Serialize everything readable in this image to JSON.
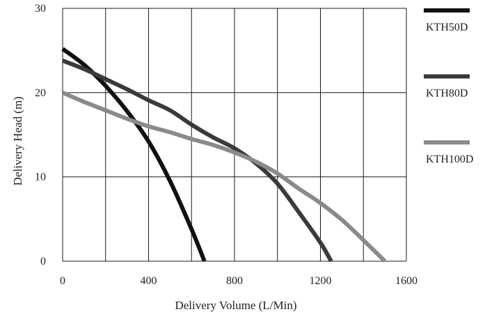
{
  "chart_data": {
    "type": "line",
    "title": "",
    "xlabel": "Delivery Volume (L/Min)",
    "ylabel": "Delivery Head (m)",
    "xlim": [
      0,
      1600
    ],
    "ylim": [
      0,
      30
    ],
    "x_ticks": [
      "0",
      "400",
      "800",
      "1200",
      "1600"
    ],
    "y_ticks": [
      "0",
      "10",
      "20",
      "30"
    ],
    "grid": true,
    "legend_position": "right",
    "series": [
      {
        "name": "KTH50D",
        "color": "#111111",
        "points": [
          [
            0,
            25.2
          ],
          [
            100,
            23.3
          ],
          [
            200,
            20.8
          ],
          [
            300,
            17.8
          ],
          [
            400,
            14.2
          ],
          [
            500,
            9.5
          ],
          [
            600,
            3.8
          ],
          [
            660,
            0
          ]
        ]
      },
      {
        "name": "KTH80D",
        "color": "#3a3a3a",
        "points": [
          [
            0,
            23.8
          ],
          [
            100,
            22.8
          ],
          [
            200,
            21.6
          ],
          [
            300,
            20.4
          ],
          [
            400,
            19.1
          ],
          [
            500,
            17.9
          ],
          [
            600,
            16.2
          ],
          [
            700,
            14.7
          ],
          [
            800,
            13.4
          ],
          [
            900,
            11.6
          ],
          [
            1000,
            9.2
          ],
          [
            1100,
            5.8
          ],
          [
            1200,
            2.2
          ],
          [
            1250,
            0
          ]
        ]
      },
      {
        "name": "KTH100D",
        "color": "#8a8a8a",
        "points": [
          [
            0,
            20.0
          ],
          [
            100,
            18.9
          ],
          [
            200,
            17.9
          ],
          [
            300,
            16.9
          ],
          [
            400,
            16.0
          ],
          [
            500,
            15.3
          ],
          [
            600,
            14.5
          ],
          [
            700,
            13.8
          ],
          [
            800,
            12.9
          ],
          [
            900,
            11.8
          ],
          [
            1000,
            10.4
          ],
          [
            1100,
            8.6
          ],
          [
            1200,
            6.9
          ],
          [
            1300,
            4.9
          ],
          [
            1400,
            2.5
          ],
          [
            1500,
            0
          ]
        ]
      }
    ]
  }
}
